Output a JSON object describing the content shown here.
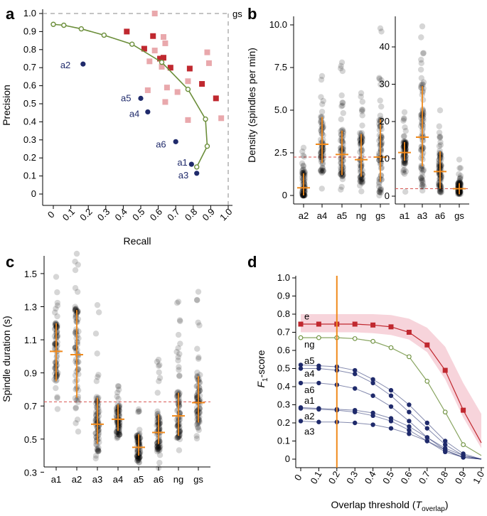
{
  "colors": {
    "navy": "#1f2a6b",
    "green": "#6b8e3a",
    "red": "#c0282f",
    "pink": "#e9a8ac",
    "orange": "#f08a1c",
    "dash": "#d9534f",
    "band": "#f4c6cf",
    "grey": "#444444"
  },
  "chart_data": [
    {
      "panel": "a",
      "type": "scatter",
      "xlabel": "Recall",
      "ylabel": "Precision",
      "xlim": [
        0,
        1
      ],
      "ylim": [
        0,
        1
      ],
      "xticks": [
        "0",
        "0.1",
        "0.2",
        "0.3",
        "0.4",
        "0.5",
        "0.6",
        "0.7",
        "0.8",
        "0.9",
        "1.0"
      ],
      "yticks": [
        "0",
        "0.1",
        "0.2",
        "0.3",
        "0.4",
        "0.5",
        "0.6",
        "0.7",
        "0.8",
        "0.9",
        "1.0"
      ],
      "reference_label": "gs",
      "curve": {
        "x": [
          0.0,
          0.06,
          0.16,
          0.29,
          0.45,
          0.62,
          0.77,
          0.87,
          0.88,
          0.82
        ],
        "y": [
          0.94,
          0.935,
          0.915,
          0.88,
          0.83,
          0.73,
          0.58,
          0.415,
          0.265,
          0.15
        ]
      },
      "algorithms": [
        {
          "label": "a1",
          "x": 0.79,
          "y": 0.165
        },
        {
          "label": "a2",
          "x": 0.17,
          "y": 0.72
        },
        {
          "label": "a3",
          "x": 0.82,
          "y": 0.115
        },
        {
          "label": "a4",
          "x": 0.54,
          "y": 0.455
        },
        {
          "label": "a5",
          "x": 0.5,
          "y": 0.53
        },
        {
          "label": "a6",
          "x": 0.7,
          "y": 0.29
        }
      ],
      "experts_dark": [
        {
          "x": 0.42,
          "y": 0.9
        },
        {
          "x": 0.57,
          "y": 0.875
        },
        {
          "x": 0.52,
          "y": 0.805
        },
        {
          "x": 0.61,
          "y": 0.75
        },
        {
          "x": 0.63,
          "y": 0.755
        },
        {
          "x": 0.67,
          "y": 0.7
        },
        {
          "x": 0.78,
          "y": 0.695
        },
        {
          "x": 0.85,
          "y": 0.61
        },
        {
          "x": 0.93,
          "y": 0.53
        }
      ],
      "experts_light": [
        {
          "x": 0.58,
          "y": 1.0
        },
        {
          "x": 0.63,
          "y": 0.87
        },
        {
          "x": 0.64,
          "y": 0.835
        },
        {
          "x": 0.58,
          "y": 0.795
        },
        {
          "x": 0.62,
          "y": 0.705
        },
        {
          "x": 0.88,
          "y": 0.785
        },
        {
          "x": 0.89,
          "y": 0.725
        },
        {
          "x": 0.77,
          "y": 0.625
        },
        {
          "x": 0.65,
          "y": 0.59
        },
        {
          "x": 0.54,
          "y": 0.575
        },
        {
          "x": 0.64,
          "y": 0.51
        },
        {
          "x": 0.71,
          "y": 0.565
        },
        {
          "x": 0.96,
          "y": 0.42
        },
        {
          "x": 0.77,
          "y": 0.41
        },
        {
          "x": 0.55,
          "y": 0.735
        }
      ]
    },
    {
      "panel": "b",
      "type": "scatter",
      "ylabel": "Density (spindles per min)",
      "left": {
        "categories": [
          "a2",
          "a4",
          "a5",
          "ng",
          "gs"
        ],
        "ylim": [
          0,
          10.5
        ],
        "yticks": [
          "0",
          "2.5",
          "5.0",
          "7.5",
          "10.0"
        ],
        "reference_y": 2.25,
        "median": [
          0.45,
          3.0,
          2.4,
          2.1,
          2.25
        ],
        "err_low": [
          0.0,
          1.9,
          1.2,
          1.1,
          0.8
        ],
        "err_high": [
          1.3,
          4.6,
          3.8,
          3.6,
          4.5
        ],
        "spread_min": [
          0.0,
          0.0,
          0.0,
          0.0,
          0.0
        ],
        "spread_max": [
          2.8,
          7.0,
          7.8,
          6.0,
          9.8
        ]
      },
      "right": {
        "categories": [
          "a1",
          "a3",
          "a6",
          "gs"
        ],
        "ylim": [
          0,
          48
        ],
        "yticks": [
          "0",
          "10",
          "20",
          "30",
          "40"
        ],
        "reference_y": 2.0,
        "median": [
          11.7,
          15.8,
          6.6,
          2.0
        ],
        "err_low": [
          9.5,
          8.0,
          2.0,
          0.5
        ],
        "err_high": [
          14.5,
          29.5,
          12.0,
          3.5
        ],
        "spread_min": [
          0.0,
          0.0,
          0.0,
          0.0
        ],
        "spread_max": [
          22.5,
          45.5,
          23.0,
          9.8
        ]
      }
    },
    {
      "panel": "c",
      "type": "scatter",
      "ylabel": "Spindle duration (s)",
      "categories": [
        "a1",
        "a2",
        "a3",
        "a4",
        "a5",
        "a6",
        "ng",
        "gs"
      ],
      "ylim": [
        0.25,
        1.65
      ],
      "yticks": [
        "0.3",
        "0.5",
        "0.7",
        "0.9",
        "1.1",
        "1.3",
        "1.5"
      ],
      "reference_y": 0.725,
      "median": [
        1.03,
        1.01,
        0.59,
        0.62,
        0.45,
        0.54,
        0.64,
        0.72
      ],
      "err_low": [
        0.85,
        0.75,
        0.47,
        0.55,
        0.4,
        0.47,
        0.52,
        0.6
      ],
      "err_high": [
        1.2,
        1.28,
        0.75,
        0.71,
        0.53,
        0.65,
        0.78,
        0.88
      ],
      "spread_min": [
        0.58,
        0.42,
        0.36,
        0.5,
        0.31,
        0.32,
        0.43,
        0.4
      ],
      "spread_max": [
        1.48,
        1.62,
        1.31,
        0.82,
        0.68,
        0.98,
        1.33,
        1.39
      ]
    },
    {
      "panel": "d",
      "type": "line",
      "xlabel_main": "Overlap threshold (",
      "xlabel_var": "T",
      "xlabel_sub": "overlap",
      "xlabel_end": ")",
      "ylabel_var": "F",
      "ylabel_sub": "1",
      "ylabel_end": "-score",
      "xlim": [
        0,
        1
      ],
      "ylim": [
        0,
        1
      ],
      "xticks": [
        "0",
        "0.1",
        "0.2",
        "0.3",
        "0.4",
        "0.5",
        "0.6",
        "0.7",
        "0.8",
        "0.9",
        "1.0"
      ],
      "yticks": [
        "0",
        "0.1",
        "0.2",
        "0.3",
        "0.4",
        "0.5",
        "0.6",
        "0.7",
        "0.8",
        "0.9",
        "1.0"
      ],
      "vline_x": 0.2,
      "x": [
        0,
        0.1,
        0.2,
        0.3,
        0.4,
        0.5,
        0.6,
        0.7,
        0.8,
        0.9,
        1.0
      ],
      "band_low": [
        0.7,
        0.7,
        0.7,
        0.7,
        0.695,
        0.685,
        0.66,
        0.59,
        0.44,
        0.23,
        0.06
      ],
      "band_high": [
        0.8,
        0.8,
        0.8,
        0.8,
        0.8,
        0.795,
        0.775,
        0.725,
        0.62,
        0.42,
        0.25
      ],
      "series": [
        {
          "name": "e",
          "values": [
            0.745,
            0.745,
            0.745,
            0.745,
            0.74,
            0.73,
            0.7,
            0.63,
            0.49,
            0.27,
            null
          ],
          "style": "expert"
        },
        {
          "name": "ng",
          "values": [
            0.67,
            0.67,
            0.67,
            0.665,
            0.65,
            0.615,
            0.565,
            0.43,
            0.26,
            0.08,
            null
          ],
          "style": "nonexpert"
        },
        {
          "name": "a5",
          "values": [
            0.52,
            0.515,
            0.51,
            0.49,
            0.44,
            0.38,
            0.3,
            0.2,
            0.1,
            0.03,
            null
          ],
          "style": "algo"
        },
        {
          "name": "a4",
          "values": [
            0.5,
            0.5,
            0.49,
            0.47,
            0.42,
            0.35,
            0.26,
            0.17,
            0.08,
            0.02,
            null
          ],
          "style": "algo"
        },
        {
          "name": "a6",
          "values": [
            0.42,
            0.42,
            0.41,
            0.39,
            0.35,
            0.29,
            0.21,
            0.12,
            0.05,
            0.01,
            null
          ],
          "style": "algo"
        },
        {
          "name": "a1",
          "values": [
            0.285,
            0.28,
            0.275,
            0.27,
            0.255,
            0.225,
            0.18,
            0.12,
            0.06,
            0.02,
            null
          ],
          "style": "algo"
        },
        {
          "name": "a2",
          "values": [
            0.28,
            0.275,
            0.27,
            0.26,
            0.24,
            0.21,
            0.16,
            0.1,
            0.04,
            0.01,
            null
          ],
          "style": "algo"
        },
        {
          "name": "a3",
          "values": [
            0.21,
            0.205,
            0.205,
            0.2,
            0.19,
            0.17,
            0.14,
            0.1,
            0.05,
            0.01,
            null
          ],
          "style": "algo"
        }
      ]
    }
  ]
}
